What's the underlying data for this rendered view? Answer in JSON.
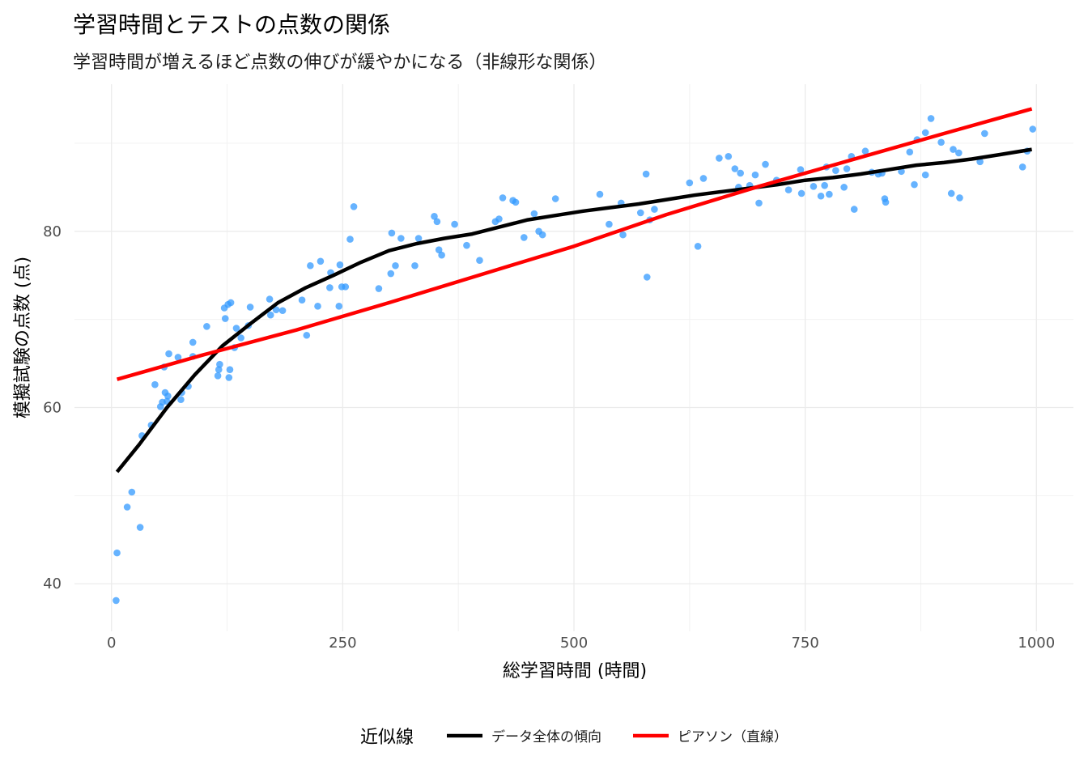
{
  "chart_data": {
    "type": "scatter",
    "title": "学習時間とテストの点数の関係",
    "subtitle": "学習時間が増えるほど点数の伸びが緩やかになる（非線形な関係）",
    "xlabel": "総学習時間 (時間)",
    "ylabel": "模擬試験の点数 (点)",
    "xlim": [
      -40,
      1040
    ],
    "ylim": [
      34.6,
      96.7
    ],
    "x_ticks": [
      0,
      250,
      500,
      750,
      1000
    ],
    "y_ticks": [
      40,
      60,
      80
    ],
    "grid": true,
    "legend": {
      "position": "bottom",
      "title": "近似線",
      "entries": [
        {
          "label": "データ全体の傾向",
          "color": "#000000"
        },
        {
          "label": "ピアソン（直線）",
          "color": "#ff0000"
        }
      ]
    },
    "point_color": "#3399ff",
    "points": [
      [
        5,
        38.1
      ],
      [
        6,
        43.5
      ],
      [
        17,
        48.7
      ],
      [
        22,
        50.4
      ],
      [
        31,
        46.4
      ],
      [
        33,
        56.8
      ],
      [
        43,
        58.0
      ],
      [
        47,
        62.6
      ],
      [
        53,
        60.1
      ],
      [
        55,
        60.6
      ],
      [
        57,
        64.6
      ],
      [
        58,
        61.7
      ],
      [
        60,
        60.7
      ],
      [
        61,
        61.3
      ],
      [
        62,
        66.1
      ],
      [
        72,
        65.7
      ],
      [
        75,
        60.9
      ],
      [
        76,
        61.7
      ],
      [
        83,
        62.4
      ],
      [
        88,
        65.8
      ],
      [
        88,
        67.4
      ],
      [
        103,
        69.2
      ],
      [
        115,
        63.6
      ],
      [
        116,
        64.3
      ],
      [
        117,
        64.9
      ],
      [
        122,
        71.3
      ],
      [
        123,
        70.1
      ],
      [
        126,
        71.7
      ],
      [
        127,
        63.4
      ],
      [
        128,
        64.3
      ],
      [
        129,
        71.9
      ],
      [
        133,
        66.8
      ],
      [
        135,
        69.0
      ],
      [
        140,
        67.9
      ],
      [
        148,
        69.3
      ],
      [
        150,
        71.4
      ],
      [
        171,
        72.3
      ],
      [
        172,
        70.5
      ],
      [
        178,
        71.1
      ],
      [
        185,
        71.0
      ],
      [
        206,
        72.2
      ],
      [
        211,
        68.2
      ],
      [
        215,
        76.1
      ],
      [
        223,
        71.5
      ],
      [
        226,
        76.6
      ],
      [
        236,
        73.6
      ],
      [
        237,
        75.3
      ],
      [
        246,
        71.5
      ],
      [
        247,
        76.2
      ],
      [
        249,
        73.7
      ],
      [
        253,
        73.7
      ],
      [
        258,
        79.1
      ],
      [
        262,
        82.8
      ],
      [
        289,
        73.5
      ],
      [
        302,
        75.2
      ],
      [
        303,
        79.8
      ],
      [
        307,
        76.1
      ],
      [
        313,
        79.2
      ],
      [
        328,
        76.1
      ],
      [
        332,
        79.2
      ],
      [
        349,
        81.7
      ],
      [
        352,
        81.1
      ],
      [
        354,
        77.9
      ],
      [
        357,
        77.3
      ],
      [
        371,
        80.8
      ],
      [
        384,
        78.4
      ],
      [
        398,
        76.7
      ],
      [
        415,
        81.1
      ],
      [
        419,
        81.4
      ],
      [
        423,
        83.8
      ],
      [
        434,
        83.5
      ],
      [
        437,
        83.3
      ],
      [
        446,
        79.3
      ],
      [
        457,
        82.0
      ],
      [
        462,
        80.0
      ],
      [
        466,
        79.6
      ],
      [
        480,
        83.7
      ],
      [
        528,
        84.2
      ],
      [
        538,
        80.8
      ],
      [
        551,
        83.2
      ],
      [
        553,
        79.6
      ],
      [
        572,
        82.1
      ],
      [
        578,
        86.5
      ],
      [
        579,
        74.8
      ],
      [
        582,
        81.3
      ],
      [
        587,
        82.5
      ],
      [
        625,
        85.5
      ],
      [
        634,
        78.3
      ],
      [
        640,
        86.0
      ],
      [
        657,
        88.3
      ],
      [
        667,
        88.5
      ],
      [
        674,
        87.1
      ],
      [
        678,
        85.0
      ],
      [
        680,
        86.6
      ],
      [
        690,
        85.2
      ],
      [
        696,
        86.4
      ],
      [
        700,
        83.2
      ],
      [
        707,
        87.6
      ],
      [
        719,
        85.8
      ],
      [
        732,
        84.7
      ],
      [
        745,
        87.0
      ],
      [
        746,
        84.3
      ],
      [
        759,
        85.1
      ],
      [
        767,
        84.0
      ],
      [
        771,
        85.2
      ],
      [
        773,
        87.3
      ],
      [
        776,
        84.2
      ],
      [
        783,
        86.9
      ],
      [
        792,
        85.0
      ],
      [
        795,
        87.1
      ],
      [
        800,
        88.5
      ],
      [
        803,
        82.5
      ],
      [
        815,
        89.1
      ],
      [
        822,
        86.7
      ],
      [
        829,
        86.5
      ],
      [
        833,
        86.6
      ],
      [
        836,
        83.7
      ],
      [
        837,
        83.3
      ],
      [
        854,
        86.8
      ],
      [
        863,
        89.0
      ],
      [
        868,
        85.3
      ],
      [
        871,
        90.4
      ],
      [
        880,
        86.4
      ],
      [
        880,
        91.2
      ],
      [
        886,
        92.8
      ],
      [
        897,
        90.1
      ],
      [
        908,
        84.3
      ],
      [
        910,
        89.3
      ],
      [
        916,
        88.9
      ],
      [
        917,
        83.8
      ],
      [
        939,
        87.9
      ],
      [
        944,
        91.1
      ],
      [
        985,
        87.3
      ],
      [
        990,
        89.1
      ],
      [
        996,
        91.6
      ]
    ],
    "series": [
      {
        "name": "データ全体の傾向",
        "color": "#000000",
        "x": [
          6,
          30,
          60,
          90,
          120,
          150,
          180,
          210,
          240,
          270,
          300,
          330,
          360,
          390,
          420,
          450,
          480,
          510,
          540,
          570,
          600,
          630,
          660,
          690,
          720,
          750,
          780,
          810,
          840,
          870,
          900,
          930,
          960,
          995
        ],
        "y": [
          52.7,
          55.8,
          60.0,
          63.7,
          67.0,
          69.5,
          71.9,
          73.6,
          75.0,
          76.5,
          77.8,
          78.6,
          79.2,
          79.7,
          80.5,
          81.3,
          81.8,
          82.3,
          82.7,
          83.1,
          83.6,
          84.1,
          84.5,
          84.9,
          85.3,
          85.8,
          86.1,
          86.5,
          87.0,
          87.5,
          87.8,
          88.2,
          88.7,
          89.3
        ]
      },
      {
        "name": "ピアソン（直線）",
        "color": "#ff0000",
        "x": [
          6,
          100,
          200,
          300,
          400,
          500,
          600,
          700,
          800,
          900,
          995
        ],
        "y": [
          63.2,
          66.0,
          68.8,
          71.9,
          75.1,
          78.3,
          81.9,
          85.1,
          88.1,
          91.1,
          93.9
        ]
      }
    ]
  }
}
